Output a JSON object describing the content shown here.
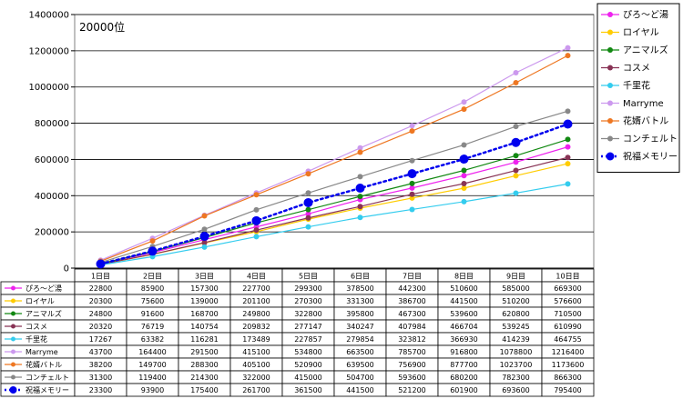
{
  "chart_data": {
    "type": "line",
    "annotation": "20000位",
    "categories": [
      "1日目",
      "2日目",
      "3日目",
      "4日目",
      "5日目",
      "6日目",
      "7日目",
      "8日目",
      "9日目",
      "10日目"
    ],
    "ylim": [
      0,
      1400000
    ],
    "yticks": [
      0,
      200000,
      400000,
      600000,
      800000,
      1000000,
      1200000,
      1400000
    ],
    "grid": true,
    "legend_position": "right",
    "series": [
      {
        "name": "ぴろ〜ど湯",
        "color": "#ee22ee",
        "values": [
          22800,
          85900,
          157300,
          227700,
          299300,
          378500,
          442300,
          510600,
          585000,
          669300
        ]
      },
      {
        "name": "ロイヤル",
        "color": "#ffcc00",
        "values": [
          20300,
          75600,
          139000,
          201100,
          270300,
          331300,
          386700,
          441500,
          510200,
          576600
        ]
      },
      {
        "name": "アニマルズ",
        "color": "#118811",
        "values": [
          24800,
          91600,
          168700,
          249800,
          322800,
          395800,
          467300,
          539600,
          620800,
          710500
        ]
      },
      {
        "name": "コスメ",
        "color": "#883355",
        "values": [
          20320,
          76719,
          140754,
          209832,
          277147,
          340247,
          407984,
          466704,
          539245,
          610990
        ]
      },
      {
        "name": "千里花",
        "color": "#33ccee",
        "values": [
          17267,
          63382,
          116281,
          173489,
          227857,
          279854,
          323812,
          366930,
          414239,
          464755
        ]
      },
      {
        "name": "Marryme",
        "color": "#cc99ee",
        "values": [
          43700,
          164400,
          291500,
          415100,
          534800,
          663500,
          785700,
          916800,
          1078800,
          1216400
        ]
      },
      {
        "name": "花婿バトル",
        "color": "#ee7722",
        "values": [
          38200,
          149700,
          288300,
          405100,
          520900,
          639500,
          756900,
          877700,
          1023700,
          1173600
        ]
      },
      {
        "name": "コンチェルト",
        "color": "#888888",
        "values": [
          31300,
          119400,
          214300,
          322000,
          415000,
          504700,
          593600,
          680200,
          782300,
          866300
        ]
      },
      {
        "name": "祝福メモリー",
        "color": "#0000ee",
        "dotted": true,
        "values": [
          23300,
          93900,
          175400,
          261700,
          361500,
          441500,
          521200,
          601900,
          693600,
          795400
        ]
      }
    ]
  }
}
